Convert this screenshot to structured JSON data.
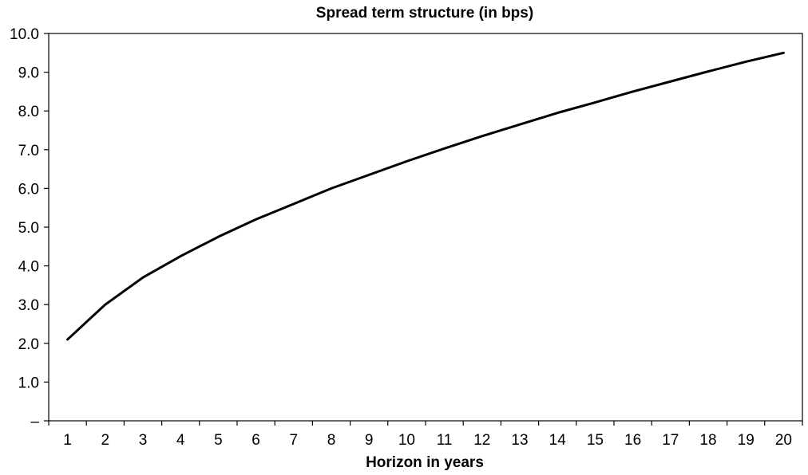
{
  "chart_data": {
    "type": "line",
    "title": "Spread term structure (in bps)",
    "xlabel": "Horizon in years",
    "ylabel": "",
    "x": [
      1,
      2,
      3,
      4,
      5,
      6,
      7,
      8,
      9,
      10,
      11,
      12,
      13,
      14,
      15,
      16,
      17,
      18,
      19,
      20
    ],
    "y_tick_labels": [
      "–",
      "1.0",
      "2.0",
      "3.0",
      "4.0",
      "5.0",
      "6.0",
      "7.0",
      "8.0",
      "9.0",
      "10.0"
    ],
    "y_ticks": [
      0,
      1,
      2,
      3,
      4,
      5,
      6,
      7,
      8,
      9,
      10
    ],
    "ylim": [
      0,
      10
    ],
    "grid": false,
    "legend": "none",
    "line_color": "#000000",
    "series": [
      {
        "values": [
          2.1,
          3.0,
          3.7,
          4.25,
          4.75,
          5.2,
          5.6,
          6.0,
          6.35,
          6.7,
          7.03,
          7.35,
          7.65,
          7.95,
          8.22,
          8.5,
          8.76,
          9.02,
          9.27,
          9.5
        ]
      }
    ]
  }
}
